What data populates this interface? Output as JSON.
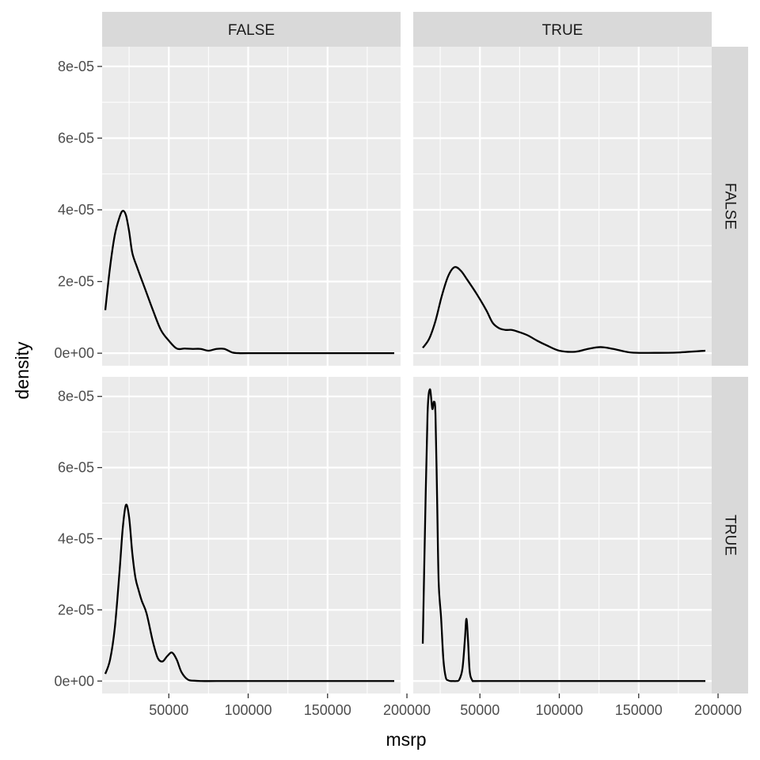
{
  "chart_data": {
    "type": "line",
    "title": "",
    "xlabel": "msrp",
    "ylabel": "density",
    "xlim": [
      8000,
      196000
    ],
    "ylim": [
      -3.5e-06,
      8.55e-05
    ],
    "x_ticks": [
      50000,
      100000,
      150000,
      200000
    ],
    "x_tick_labels": [
      "50000",
      "100000",
      "150000",
      "200000"
    ],
    "y_ticks": [
      0,
      2e-05,
      4e-05,
      6e-05,
      8e-05
    ],
    "y_tick_labels": [
      "0e+00",
      "2e-05",
      "4e-05",
      "6e-05",
      "8e-05"
    ],
    "grid": true,
    "legend": "none",
    "col_facet_labels": [
      "FALSE",
      "TRUE"
    ],
    "row_facet_labels": [
      "FALSE",
      "TRUE"
    ],
    "colors": {
      "panel_bg": "#ebebeb",
      "grid": "#ffffff",
      "strip_bg": "#d9d9d9",
      "line": "#000000"
    },
    "panels": [
      {
        "row": "FALSE",
        "col": "FALSE",
        "x": [
          10000,
          13000,
          16000,
          19000,
          21000,
          23000,
          25000,
          27000,
          30000,
          35000,
          40000,
          45000,
          50000,
          55000,
          60000,
          65000,
          70000,
          75000,
          80000,
          85000,
          90000,
          95000,
          100000,
          150000,
          192000
        ],
        "y": [
          1.2e-05,
          2.4e-05,
          3.3e-05,
          3.8e-05,
          3.97e-05,
          3.85e-05,
          3.4e-05,
          2.8e-05,
          2.4e-05,
          1.8e-05,
          1.2e-05,
          6.5e-06,
          3.5e-06,
          1.3e-06,
          1.3e-06,
          1.2e-06,
          1.2e-06,
          7e-07,
          1.2e-06,
          1.2e-06,
          2e-07,
          0,
          0,
          0,
          0
        ]
      },
      {
        "row": "FALSE",
        "col": "TRUE",
        "x": [
          14000,
          18000,
          22000,
          26000,
          30000,
          34000,
          38000,
          42000,
          48000,
          54000,
          58000,
          62000,
          66000,
          70000,
          74000,
          80000,
          86000,
          92000,
          100000,
          110000,
          118000,
          126000,
          134000,
          145000,
          160000,
          175000,
          192000
        ],
        "y": [
          1.5e-06,
          4e-06,
          9e-06,
          1.6e-05,
          2.15e-05,
          2.4e-05,
          2.3e-05,
          2.05e-05,
          1.65e-05,
          1.2e-05,
          8.5e-06,
          7e-06,
          6.5e-06,
          6.5e-06,
          6e-06,
          5e-06,
          3.5e-06,
          2.2e-06,
          7e-07,
          4e-07,
          1.2e-06,
          1.7e-06,
          1.2e-06,
          2e-07,
          1e-07,
          2e-07,
          7e-07
        ]
      },
      {
        "row": "TRUE",
        "col": "FALSE",
        "x": [
          10000,
          13000,
          16000,
          19000,
          21000,
          23000,
          25000,
          27000,
          29000,
          31000,
          33000,
          36000,
          40000,
          43000,
          46000,
          49000,
          52000,
          55000,
          58000,
          62000,
          66000,
          70000,
          80000,
          100000,
          150000,
          192000
        ],
        "y": [
          2e-06,
          6e-06,
          1.5e-05,
          3.1e-05,
          4.3e-05,
          4.95e-05,
          4.6e-05,
          3.6e-05,
          2.9e-05,
          2.55e-05,
          2.25e-05,
          1.9e-05,
          1.1e-05,
          6.5e-06,
          5.5e-06,
          7e-06,
          8e-06,
          6e-06,
          2.5e-06,
          4e-07,
          1e-07,
          0,
          0,
          0,
          0,
          0
        ]
      },
      {
        "row": "TRUE",
        "col": "TRUE",
        "x": [
          14000,
          15500,
          17000,
          18500,
          20000,
          21000,
          22000,
          23000,
          24000,
          25500,
          27000,
          28500,
          30000,
          31500,
          33000,
          35000,
          37000,
          39000,
          40500,
          41500,
          42500,
          43500,
          45000,
          47000,
          50000,
          100000,
          150000,
          192000
        ],
        "y": [
          1.05e-05,
          4.5e-05,
          7.5e-05,
          8.2e-05,
          7.65e-05,
          7.85e-05,
          7.5e-05,
          5.2e-05,
          2.8e-05,
          1.8e-05,
          6e-06,
          1e-06,
          2e-07,
          0,
          0,
          0,
          4e-07,
          3.5e-06,
          1.15e-05,
          1.75e-05,
          1.15e-05,
          3e-06,
          3e-07,
          0,
          0,
          0,
          0,
          0
        ]
      }
    ]
  }
}
